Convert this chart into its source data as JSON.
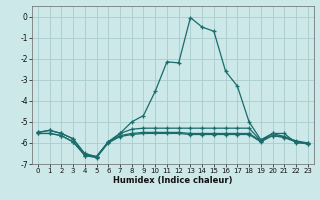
{
  "xlabel": "Humidex (Indice chaleur)",
  "xlim": [
    -0.5,
    23.5
  ],
  "ylim": [
    -7,
    0.5
  ],
  "yticks": [
    0,
    -1,
    -2,
    -3,
    -4,
    -5,
    -6,
    -7
  ],
  "xticks": [
    0,
    1,
    2,
    3,
    4,
    5,
    6,
    7,
    8,
    9,
    10,
    11,
    12,
    13,
    14,
    15,
    16,
    17,
    18,
    19,
    20,
    21,
    22,
    23
  ],
  "background_color": "#cce8e8",
  "grid_color": "#aacccc",
  "line_color": "#1a6b6b",
  "line1_x": [
    0,
    1,
    2,
    3,
    4,
    5,
    6,
    7,
    8,
    9,
    10,
    11,
    12,
    13,
    14,
    15,
    16,
    17,
    18,
    19,
    20,
    21,
    22,
    23
  ],
  "line1_y": [
    -5.5,
    -5.4,
    -5.55,
    -5.8,
    -6.6,
    -6.65,
    -5.95,
    -5.55,
    -5.0,
    -4.7,
    -3.55,
    -2.15,
    -2.2,
    -0.05,
    -0.5,
    -0.7,
    -2.6,
    -3.3,
    -5.0,
    -5.85,
    -5.55,
    -5.55,
    -6.0,
    -6.0
  ],
  "line2_x": [
    0,
    1,
    2,
    3,
    4,
    5,
    6,
    7,
    8,
    9,
    10,
    11,
    12,
    13,
    14,
    15,
    16,
    17,
    18,
    19,
    20,
    21,
    22,
    23
  ],
  "line2_y": [
    -5.5,
    -5.4,
    -5.55,
    -5.8,
    -6.5,
    -6.65,
    -5.95,
    -5.55,
    -5.35,
    -5.3,
    -5.3,
    -5.3,
    -5.3,
    -5.3,
    -5.3,
    -5.3,
    -5.3,
    -5.3,
    -5.3,
    -5.9,
    -5.55,
    -5.7,
    -5.9,
    -6.0
  ],
  "line3_x": [
    0,
    1,
    2,
    3,
    4,
    5,
    6,
    7,
    8,
    9,
    10,
    11,
    12,
    13,
    14,
    15,
    16,
    17,
    18,
    19,
    20,
    21,
    22,
    23
  ],
  "line3_y": [
    -5.55,
    -5.55,
    -5.65,
    -5.95,
    -6.55,
    -6.65,
    -5.95,
    -5.65,
    -5.55,
    -5.5,
    -5.5,
    -5.5,
    -5.5,
    -5.55,
    -5.55,
    -5.55,
    -5.55,
    -5.55,
    -5.55,
    -5.9,
    -5.65,
    -5.7,
    -5.95,
    -6.05
  ],
  "line4_x": [
    0,
    1,
    2,
    3,
    4,
    5,
    6,
    7,
    8,
    9,
    10,
    11,
    12,
    13,
    14,
    15,
    16,
    17,
    18,
    19,
    20,
    21,
    22,
    23
  ],
  "line4_y": [
    -5.55,
    -5.55,
    -5.65,
    -5.95,
    -6.6,
    -6.7,
    -6.0,
    -5.7,
    -5.6,
    -5.55,
    -5.55,
    -5.55,
    -5.55,
    -5.6,
    -5.6,
    -5.6,
    -5.6,
    -5.6,
    -5.6,
    -5.95,
    -5.65,
    -5.75,
    -5.95,
    -6.05
  ]
}
